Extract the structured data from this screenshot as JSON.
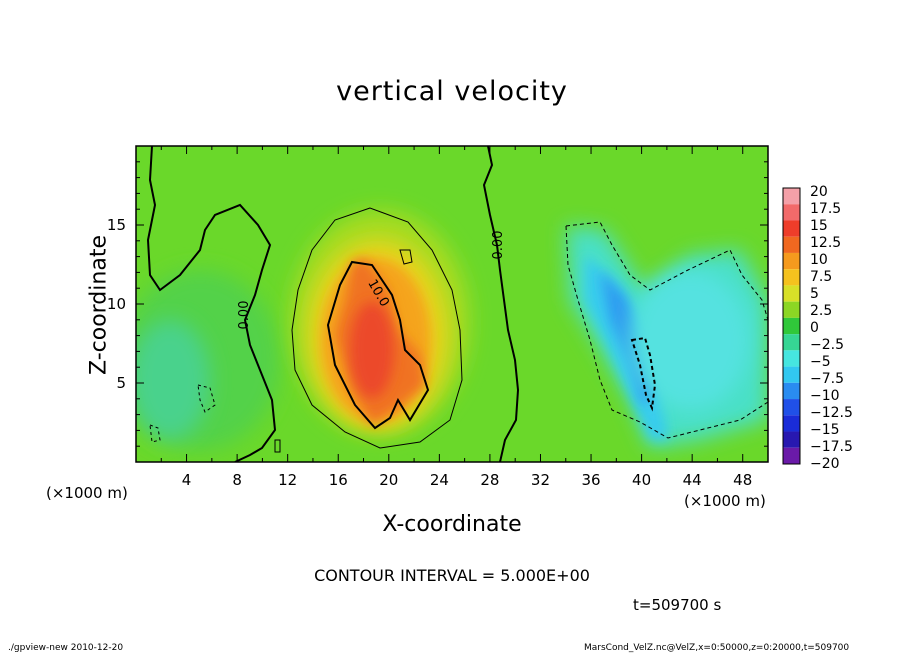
{
  "chart_data": {
    "type": "heatmap",
    "title": "vertical velocity",
    "xlabel": "X-coordinate",
    "ylabel": "Z-coordinate",
    "x_unit_left": "(×1000 m)",
    "x_unit_right": "(×1000 m)",
    "xlim": [
      0,
      50
    ],
    "ylim": [
      0,
      20
    ],
    "x_ticks": [
      4,
      8,
      12,
      16,
      20,
      24,
      28,
      32,
      36,
      40,
      44,
      48
    ],
    "y_ticks": [
      5,
      10,
      15
    ],
    "colorbar": {
      "labels": [
        "20",
        "17.5",
        "15",
        "12.5",
        "10",
        "7.5",
        "5",
        "2.5",
        "0",
        "−2.5",
        "−5",
        "−7.5",
        "−10",
        "−12.5",
        "−15",
        "−17.5",
        "−20"
      ],
      "colors": [
        "#f4a0a8",
        "#f26a6a",
        "#ee3d2a",
        "#f06820",
        "#f59a1e",
        "#f5c21e",
        "#d8e028",
        "#8cd624",
        "#30c83a",
        "#36d694",
        "#46e6e0",
        "#32c8f0",
        "#2a8cf0",
        "#2050e8",
        "#1a2cd8",
        "#2818b0",
        "#6a1aa8"
      ]
    },
    "contour_labels": [
      "0.00",
      "0.00",
      "10.0"
    ],
    "contour_interval_text": "CONTOUR INTERVAL = 5.000E+00",
    "time_text": "t=509700 s"
  },
  "footer": {
    "left": "./gpview-new   2010-12-20",
    "right": "MarsCond_VelZ.nc@VelZ,x=0:50000,z=0:20000,t=509700"
  }
}
